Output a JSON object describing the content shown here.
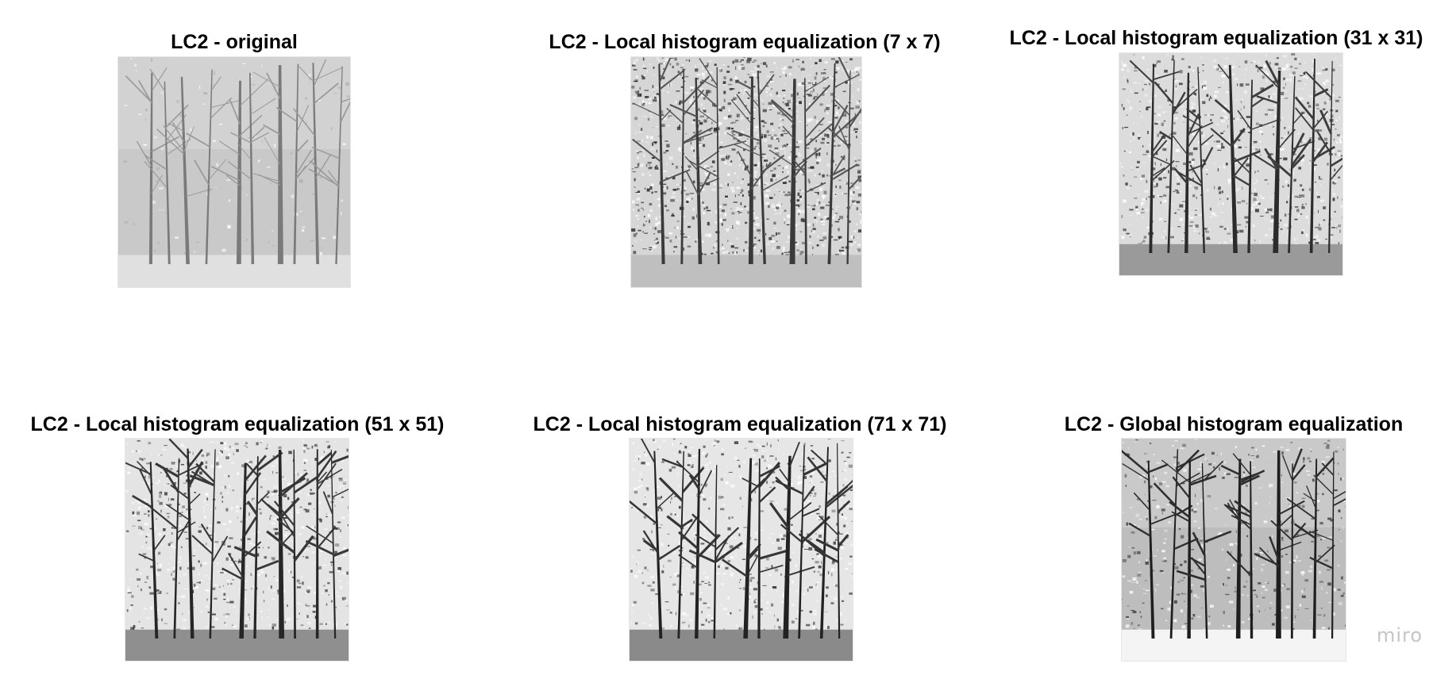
{
  "panels": [
    {
      "title": "LC2 - original",
      "variant": "original"
    },
    {
      "title": "LC2 - Local histogram equalization (7 x 7)",
      "variant": "local7"
    },
    {
      "title": "LC2 - Local histogram equalization (31 x 31)",
      "variant": "local31"
    },
    {
      "title": "LC2 - Local histogram equalization (51 x 51)",
      "variant": "local51"
    },
    {
      "title": "LC2 - Local histogram equalization (71 x 71)",
      "variant": "local71"
    },
    {
      "title": "LC2 - Global histogram equalization",
      "variant": "global"
    }
  ],
  "watermark": "miro",
  "colors": {
    "background": "#ffffff",
    "title_text": "#000000",
    "watermark_text": "#c4c4cf"
  }
}
